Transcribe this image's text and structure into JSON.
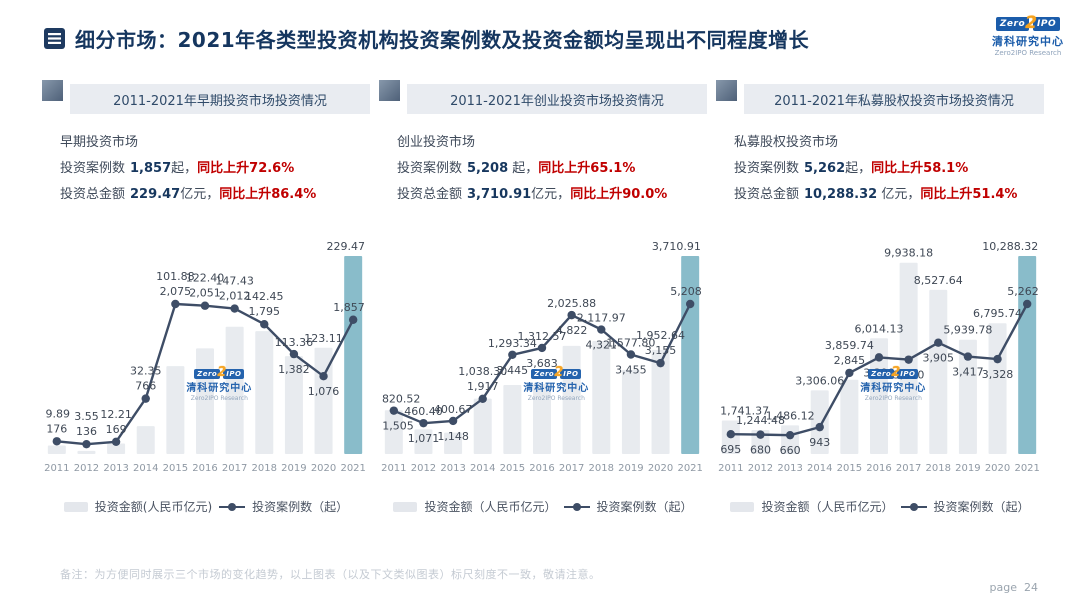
{
  "header": {
    "title": "细分市场：2021年各类型投资机构投资案例数及投资金额均呈现出不同程度增长"
  },
  "logo": {
    "zero": "Zero",
    "two": "2",
    "ipo": "IPO",
    "cn": "清科研究中心",
    "en": "Zero2IPO Research"
  },
  "colors": {
    "navy": "#17375e",
    "red": "#c00000",
    "bar": "#e8ebef",
    "bar_highlight": "#89bcca",
    "line": "#3e4d66",
    "label": "#3f4855",
    "axis": "#8f99a4"
  },
  "panels": [
    {
      "header": "2011-2021年早期投资市场投资情况",
      "market": "早期投资市场",
      "cases_label": "投资案例数",
      "cases_value": "1,857",
      "cases_unit": "起，",
      "cases_growth": "同比上升72.6%",
      "amount_label": "投资总金额",
      "amount_value": "229.47",
      "amount_unit": "亿元，",
      "amount_growth": "同比上升86.4%",
      "legend_bar": "投资金额(人民币亿元)",
      "legend_line": "投资案例数（起）"
    },
    {
      "header": "2011-2021年创业投资市场投资情况",
      "market": "创业投资市场",
      "cases_label": "投资案例数",
      "cases_value": "5,208",
      "cases_unit": " 起，",
      "cases_growth": "同比上升65.1%",
      "amount_label": "投资总金额",
      "amount_value": "3,710.91",
      "amount_unit": "亿元，",
      "amount_growth": "同比上升90.0%",
      "legend_bar": "投资金额（人民币亿元）",
      "legend_line": "投资案例数（起）"
    },
    {
      "header": "2011-2021年私募股权投资市场投资情况",
      "market": "私募股权投资市场",
      "cases_label": "投资案例数",
      "cases_value": "5,262",
      "cases_unit": "起，",
      "cases_growth": "同比上升58.1%",
      "amount_label": "投资总金额",
      "amount_value": "10,288.32",
      "amount_unit": " 亿元，",
      "amount_growth": "同比上升51.4%",
      "legend_bar": "投资金额（人民币亿元）",
      "legend_line": "投资案例数（起）"
    }
  ],
  "chart_data": [
    {
      "type": "bar+line combo",
      "title": "2011-2021年早期投资市场投资情况",
      "categories": [
        "2011",
        "2012",
        "2013",
        "2014",
        "2015",
        "2016",
        "2017",
        "2018",
        "2019",
        "2020",
        "2021"
      ],
      "highlight_index": 10,
      "axes": "hidden (dual scale), no gridlines, data labels shown",
      "legend_position": "bottom",
      "series": [
        {
          "name": "投资金额(人民币亿元)",
          "type": "bar",
          "values": [
            9.89,
            3.55,
            12.21,
            32.35,
            101.88,
            122.4,
            147.43,
            142.45,
            113.36,
            123.11,
            229.47
          ],
          "labels": [
            "9.89",
            "3.55",
            "12.21",
            "32.35",
            "101.88",
            "122.40",
            "147.43",
            "142.45",
            "113.36",
            "123.11",
            "229.47"
          ]
        },
        {
          "name": "投资案例数（起）",
          "type": "line",
          "values": [
            176,
            136,
            169,
            766,
            2075,
            2051,
            2012,
            1795,
            1382,
            1076,
            1857
          ],
          "labels": [
            "176",
            "136",
            "169",
            "766",
            "2,075",
            "2,051",
            "2,012",
            "1,795",
            "1,382",
            "1,076",
            "1,857"
          ],
          "label_pos": [
            "above",
            "above",
            "above",
            "above",
            "above",
            "above",
            "above",
            "above",
            "below",
            "below",
            "above"
          ]
        }
      ]
    },
    {
      "type": "bar+line combo",
      "title": "2011-2021年创业投资市场投资情况",
      "categories": [
        "2011",
        "2012",
        "2013",
        "2014",
        "2015",
        "2016",
        "2017",
        "2018",
        "2019",
        "2020",
        "2021"
      ],
      "highlight_index": 10,
      "axes": "hidden (dual scale), no gridlines, data labels shown",
      "legend_position": "bottom",
      "series": [
        {
          "name": "投资金额（人民币亿元）",
          "type": "bar",
          "values": [
            820.52,
            460.4,
            400.67,
            1038.3,
            1293.34,
            1312.57,
            2025.88,
            2117.97,
            1577.8,
            1952.64,
            3710.91
          ],
          "labels": [
            "820.52",
            "460.40",
            "400.67",
            "1,038.30",
            "1,293.34",
            "1,312.57",
            "2,025.88",
            "2,117.97",
            "1,577.80",
            "1,952.64",
            "3,710.91"
          ]
        },
        {
          "name": "投资案例数（起）",
          "type": "line",
          "values": [
            1505,
            1071,
            1148,
            1917,
            3445,
            3683,
            4822,
            4321,
            3455,
            3155,
            5208
          ],
          "labels": [
            "1,505",
            "1,071",
            "1,148",
            "1,917",
            "3,445",
            "3,683",
            "4,822",
            "4,321",
            "3,455",
            "3,155",
            "5,208"
          ],
          "label_pos": [
            "below",
            "below",
            "below",
            "above",
            "below",
            "below",
            "below",
            "below",
            "below",
            "above",
            "above"
          ]
        }
      ]
    },
    {
      "type": "bar+line combo",
      "title": "2011-2021年私募股权投资市场投资情况",
      "categories": [
        "2011",
        "2012",
        "2013",
        "2014",
        "2015",
        "2016",
        "2017",
        "2018",
        "2019",
        "2020",
        "2021"
      ],
      "highlight_index": 10,
      "axes": "hidden (dual scale), no gridlines, data labels shown",
      "legend_position": "bottom",
      "series": [
        {
          "name": "投资金额（人民币亿元）",
          "type": "bar",
          "values": [
            1741.37,
            1244.48,
            1486.12,
            3306.06,
            3859.74,
            6014.13,
            9938.18,
            8527.64,
            5939.78,
            6795.74,
            10288.32
          ],
          "labels": [
            "1,741.37",
            "1,244.48",
            "1,486.12",
            "3,306.06",
            "3,859.74",
            "6,014.13",
            "9,938.18",
            "8,527.64",
            "5,939.78",
            "6,795.74",
            "10,288.32"
          ]
        },
        {
          "name": "投资案例数（起）",
          "type": "line",
          "values": [
            695,
            680,
            660,
            943,
            2845,
            3390,
            3310,
            3905,
            3417,
            3328,
            5262
          ],
          "labels": [
            "695",
            "680",
            "660",
            "943",
            "2,845",
            "3,390",
            "3,310",
            "3,905",
            "3,417",
            "3,328",
            "5,262"
          ],
          "label_pos": [
            "below",
            "below",
            "below",
            "below",
            "above",
            "below",
            "below",
            "below",
            "below",
            "below",
            "above"
          ]
        }
      ]
    }
  ],
  "footnote": "备注：为方便同时展示三个市场的变化趋势，以上图表（以及下文类似图表）标尺刻度不一致，敬请注意。",
  "page": "page  24"
}
